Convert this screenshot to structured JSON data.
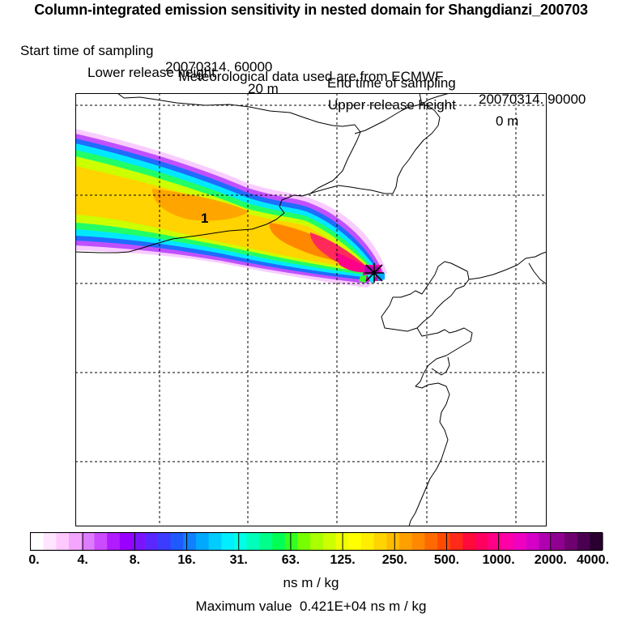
{
  "title": {
    "main": "Column-integrated emission sensitivity in nested domain for Shangdianzi_200703",
    "start_label": "Start time of sampling",
    "start_value": "20070314. 60000",
    "end_label": "End time of sampling",
    "end_value": "20070314. 90000",
    "lower_label": "Lower release height",
    "lower_value": "20 m",
    "upper_label": "Upper release height",
    "upper_value": "0 m",
    "met": "Meteorological data used are from ECMWF"
  },
  "map": {
    "plume_label": "1",
    "release_marker": "release-site"
  },
  "legend": {
    "ticks": [
      "0.",
      "4.",
      "8.",
      "16.",
      "31.",
      "63.",
      "125.",
      "250.",
      "500.",
      "1000.",
      "2000.",
      "4000."
    ],
    "colors": [
      "#ffffff",
      "#ffe5ff",
      "#ffc9ff",
      "#f4a6ff",
      "#de7cff",
      "#cc4bff",
      "#b01cff",
      "#9900ff",
      "#7a14ff",
      "#5a28ff",
      "#3c3cff",
      "#1f5aff",
      "#0f80ff",
      "#00a8ff",
      "#00ccff",
      "#00eeff",
      "#00ffe6",
      "#00ffbb",
      "#00ff8a",
      "#00ff55",
      "#33ff22",
      "#77ff00",
      "#aaff00",
      "#ccff00",
      "#eeff00",
      "#ffff00",
      "#ffee00",
      "#ffd400",
      "#ffbb00",
      "#ffa000",
      "#ff8800",
      "#ff6a00",
      "#ff4a00",
      "#ff2a1a",
      "#ff0a3a",
      "#ff0060",
      "#ff0088",
      "#ff00a8",
      "#f000c0",
      "#d400c8",
      "#b000b0",
      "#900090",
      "#700070",
      "#4a0050",
      "#2a0030"
    ],
    "units": "ns m / kg"
  },
  "max": {
    "label": "Maximum value",
    "value": "0.421E+04",
    "units": "ns m / kg"
  }
}
